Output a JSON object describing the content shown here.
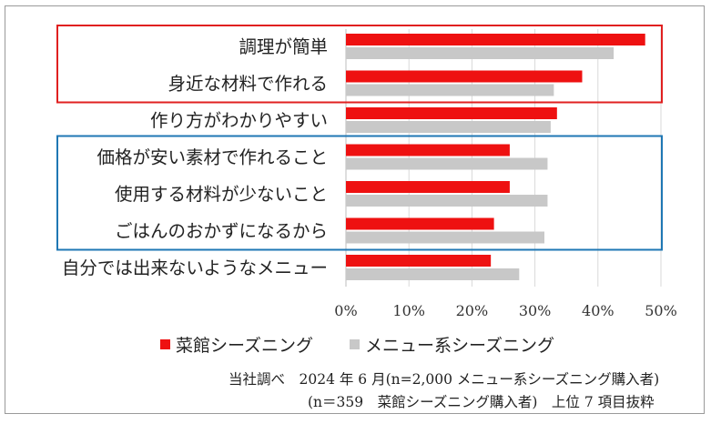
{
  "chart_data": {
    "type": "bar",
    "orientation": "horizontal",
    "categories": [
      "調理が簡単",
      "身近な材料で作れる",
      "作り方がわかりやすい",
      "価格が安い素材で作れること",
      "使用する材料が少ないこと",
      "ごはんのおかずになるから",
      "自分では出来ないようなメニュー"
    ],
    "series": [
      {
        "name": "菜館シーズニング",
        "color": "#ee1111",
        "values": [
          47.5,
          37.5,
          33.5,
          26.0,
          26.0,
          23.5,
          23.0
        ]
      },
      {
        "name": "メニュー系シーズニング",
        "color": "#c8c8c8",
        "values": [
          42.5,
          33.0,
          32.5,
          32.0,
          32.0,
          31.5,
          27.5
        ]
      }
    ],
    "xlim": [
      0,
      50
    ],
    "xticks": [
      "0%",
      "10%",
      "20%",
      "30%",
      "40%",
      "50%"
    ],
    "grid": true,
    "legend_position": "bottom",
    "highlight_groups": [
      {
        "rows": [
          0,
          1
        ],
        "color": "#e02020"
      },
      {
        "rows": [
          3,
          4,
          5
        ],
        "color": "#1f77b4"
      }
    ]
  },
  "notes": {
    "line1": "当社調べ　2024 年 6 月(n=2,000 メニュー系シーズニング購入者)",
    "line2": "(n＝359　菜館シーズニング購入者)　上位 7 項目抜粋"
  }
}
